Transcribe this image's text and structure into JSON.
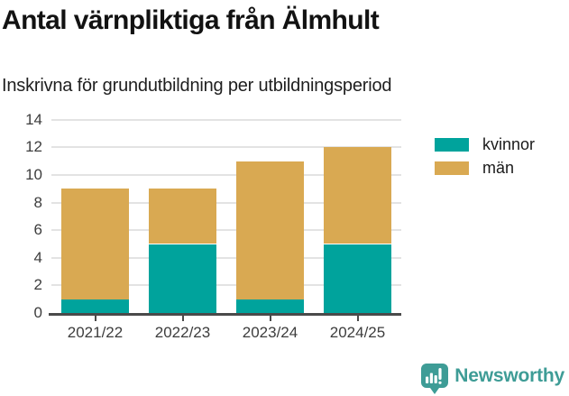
{
  "chart_data": {
    "type": "bar",
    "stacked": true,
    "title": "Antal värnpliktiga från Älmhult",
    "subtitle": "Inskrivna för grundutbildning per utbildningsperiod",
    "categories": [
      "2021/22",
      "2022/23",
      "2023/24",
      "2024/25"
    ],
    "series": [
      {
        "name": "kvinnor",
        "color": "#00a39c",
        "values": [
          1,
          5,
          1,
          5
        ]
      },
      {
        "name": "män",
        "color": "#d9a952",
        "values": [
          8,
          4,
          10,
          7
        ]
      }
    ],
    "totals": [
      9,
      9,
      11,
      12
    ],
    "xlabel": "",
    "ylabel": "",
    "ylim": [
      0,
      14
    ],
    "ytick_step": 2,
    "yticks": [
      0,
      2,
      4,
      6,
      8,
      10,
      12,
      14
    ],
    "grid": true,
    "legend_position": "right"
  },
  "colors": {
    "gridline": "#e3e3e3",
    "axis": "#4a4a4a",
    "tick_text": "#3d3d3d",
    "title_text": "#121212",
    "brand_teal": "#3e9c96"
  },
  "footer": {
    "brand": "Newsworthy"
  }
}
